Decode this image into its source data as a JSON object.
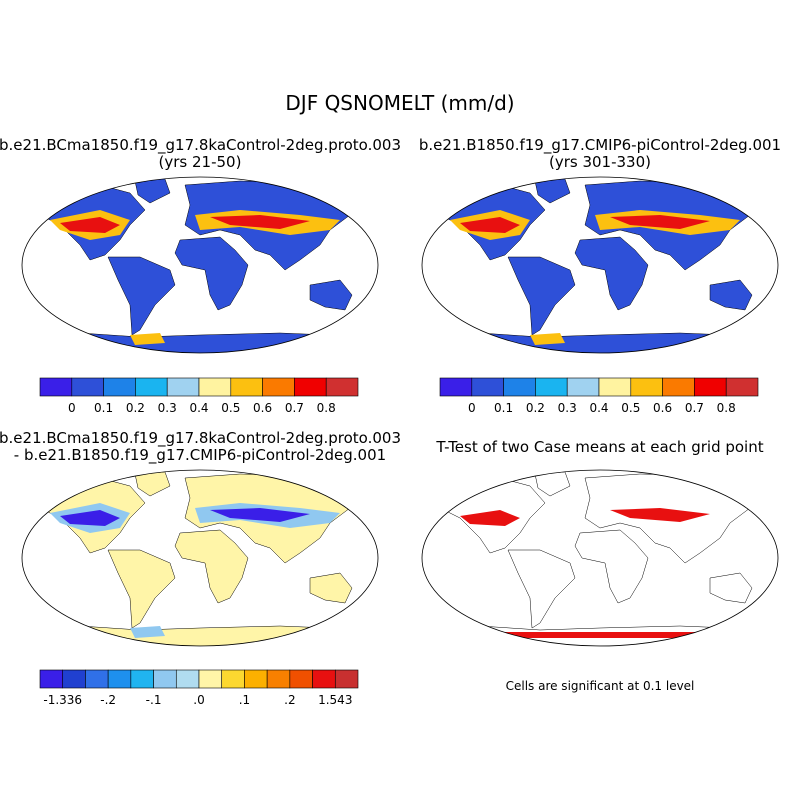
{
  "title": "DJF QSNOMELT (mm/d)",
  "panels": [
    {
      "title": "b.e21.BCma1850.f19_g17.8kaControl-2deg.proto.003",
      "subtitle": "(yrs 21-50)"
    },
    {
      "title": "b.e21.B1850.f19_g17.CMIP6-piControl-2deg.001",
      "subtitle": "(yrs 301-330)"
    },
    {
      "title": "b.e21.BCma1850.f19_g17.8kaControl-2deg.proto.003",
      "subtitle": "- b.e21.B1850.f19_g17.CMIP6-piControl-2deg.001"
    },
    {
      "title": "T-Test of two Case means at each grid point"
    }
  ],
  "colorbars": [
    {
      "colors": [
        "#3a1fe8",
        "#2e50d8",
        "#1e82e8",
        "#1ab4f0",
        "#a0d2f0",
        "#fff3a0",
        "#fcc010",
        "#fa7a00",
        "#f00000",
        "#d03030"
      ],
      "labels": [
        "0",
        "0.1",
        "0.2",
        "0.3",
        "0.4",
        "0.5",
        "0.6",
        "0.7",
        "0.8"
      ]
    },
    {
      "colors": [
        "#3a1fe8",
        "#2e50d8",
        "#1e82e8",
        "#1ab4f0",
        "#a0d2f0",
        "#fff3a0",
        "#fcc010",
        "#fa7a00",
        "#f00000",
        "#d03030"
      ],
      "labels": [
        "0",
        "0.1",
        "0.2",
        "0.3",
        "0.4",
        "0.5",
        "0.6",
        "0.7",
        "0.8"
      ]
    },
    {
      "colors": [
        "#3a1fe8",
        "#2040d0",
        "#3070e8",
        "#1e90ee",
        "#20b4f0",
        "#90c8f0",
        "#b0dcf0",
        "#fff5a8",
        "#fcd830",
        "#fcb000",
        "#f88000",
        "#f05000",
        "#e81010",
        "#c83030"
      ],
      "labels": [
        "-1.336",
        "-.2",
        "-.1",
        ".0",
        ".1",
        ".2",
        "1.543"
      ]
    }
  ],
  "note": "Cells are significant at 0.1 level"
}
